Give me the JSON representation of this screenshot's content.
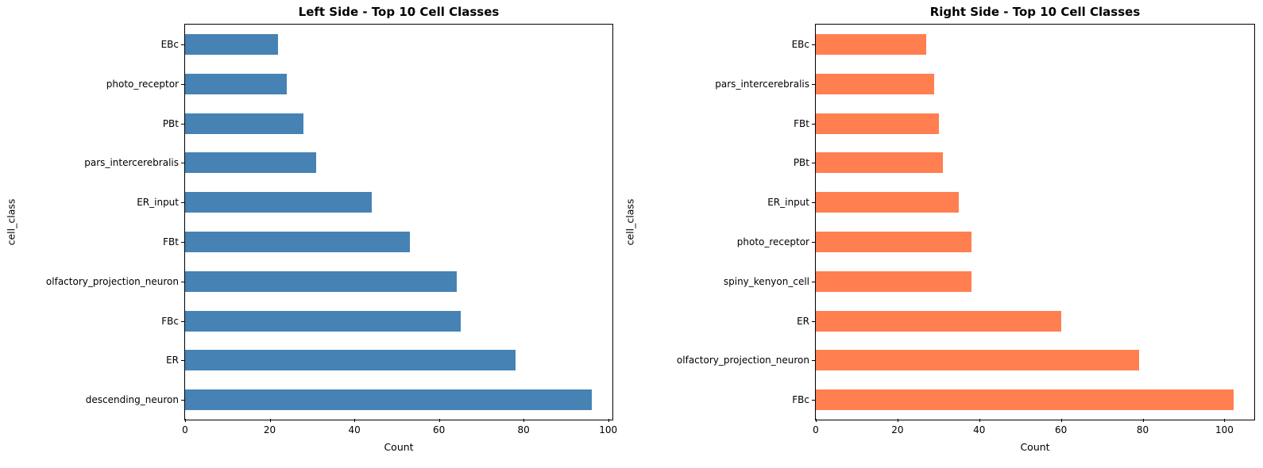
{
  "figure": {
    "background": "#ffffff",
    "spine_color": "#000000"
  },
  "chart_data": [
    {
      "type": "bar",
      "orientation": "horizontal",
      "title": "Left Side - Top 10 Cell Classes",
      "xlabel": "Count",
      "ylabel": "cell_class",
      "bar_color": "#4682B4",
      "categories_top_to_bottom": [
        "EBc",
        "photo_receptor",
        "PBt",
        "pars_intercerebralis",
        "ER_input",
        "FBt",
        "olfactory_projection_neuron",
        "FBc",
        "ER",
        "descending_neuron"
      ],
      "values": [
        22,
        24,
        28,
        31,
        44,
        53,
        64,
        65,
        78,
        96
      ],
      "xticks": [
        0,
        20,
        40,
        60,
        80,
        100
      ],
      "xlim": [
        0,
        100.8
      ],
      "grid": false,
      "legend": "none"
    },
    {
      "type": "bar",
      "orientation": "horizontal",
      "title": "Right Side - Top 10 Cell Classes",
      "xlabel": "Count",
      "ylabel": "cell_class",
      "bar_color": "#FF7F50",
      "categories_top_to_bottom": [
        "EBc",
        "pars_intercerebralis",
        "FBt",
        "PBt",
        "ER_input",
        "photo_receptor",
        "spiny_kenyon_cell",
        "ER",
        "olfactory_projection_neuron",
        "FBc"
      ],
      "values": [
        27,
        29,
        30,
        31,
        35,
        38,
        38,
        60,
        79,
        102
      ],
      "xticks": [
        0,
        20,
        40,
        60,
        80,
        100
      ],
      "xlim": [
        0,
        107.1
      ],
      "grid": false,
      "legend": "none"
    }
  ]
}
